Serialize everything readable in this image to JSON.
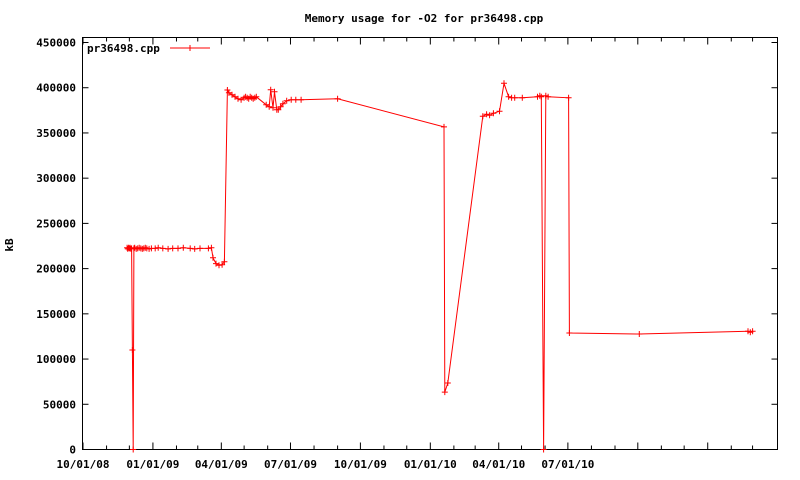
{
  "title": "Memory usage for -O2 for pr36498.cpp",
  "colors": {
    "series": "#ff0000",
    "axis": "#000000",
    "background": "#ffffff"
  },
  "legend": {
    "label": "pr36498.cpp",
    "position": "top-left"
  },
  "chart_data": {
    "type": "line",
    "title": "Memory usage for -O2 for pr36498.cpp",
    "xlabel": "",
    "ylabel": "kB",
    "x_is_time": true,
    "xlim": [
      "2008-10-01",
      "2011-04-03"
    ],
    "ylim": [
      0,
      450000
    ],
    "y_ticks": [
      0,
      50000,
      100000,
      150000,
      200000,
      250000,
      300000,
      350000,
      400000,
      450000
    ],
    "x_minor_ticks": "monthly",
    "x_major_ticks": "quarterly",
    "x_tick_labels": [
      {
        "text": "10/01/08",
        "date": "2008-10-01"
      },
      {
        "text": "01/01/09",
        "date": "2009-01-01"
      },
      {
        "text": "04/01/09",
        "date": "2009-04-01"
      },
      {
        "text": "07/01/09",
        "date": "2009-07-01"
      },
      {
        "text": "10/01/09",
        "date": "2009-10-01"
      },
      {
        "text": "01/01/10",
        "date": "2010-01-01"
      },
      {
        "text": "04/01/10",
        "date": "2010-04-01"
      },
      {
        "text": "07/01/10",
        "date": "2010-07-01"
      }
    ],
    "grid": false,
    "legend_position": "top-left",
    "series": [
      {
        "name": "pr36498.cpp",
        "color": "#ff0000",
        "marker": "plus",
        "points": [
          [
            "2008-11-28",
            223000
          ],
          [
            "2008-11-29",
            221800
          ],
          [
            "2008-11-30",
            223000
          ],
          [
            "2008-12-01",
            222400
          ],
          [
            "2008-12-02",
            223000
          ],
          [
            "2008-12-03",
            221800
          ],
          [
            "2008-12-04",
            222400
          ],
          [
            "2008-12-05",
            110000
          ],
          [
            "2008-12-06",
            0
          ],
          [
            "2008-12-07",
            222400
          ],
          [
            "2008-12-08",
            223000
          ],
          [
            "2008-12-10",
            221800
          ],
          [
            "2008-12-12",
            222400
          ],
          [
            "2008-12-14",
            223000
          ],
          [
            "2008-12-16",
            222400
          ],
          [
            "2008-12-18",
            221800
          ],
          [
            "2008-12-20",
            222400
          ],
          [
            "2008-12-22",
            223000
          ],
          [
            "2008-12-24",
            222400
          ],
          [
            "2008-12-27",
            221800
          ],
          [
            "2008-12-30",
            222400
          ],
          [
            "2009-01-04",
            222400
          ],
          [
            "2009-01-08",
            223000
          ],
          [
            "2009-01-14",
            222400
          ],
          [
            "2009-01-21",
            221800
          ],
          [
            "2009-01-27",
            222400
          ],
          [
            "2009-02-03",
            222400
          ],
          [
            "2009-02-10",
            223000
          ],
          [
            "2009-02-19",
            222400
          ],
          [
            "2009-02-25",
            221800
          ],
          [
            "2009-03-04",
            222400
          ],
          [
            "2009-03-15",
            222400
          ],
          [
            "2009-03-19",
            223000
          ],
          [
            "2009-03-21",
            212000
          ],
          [
            "2009-03-25",
            205500
          ],
          [
            "2009-03-29",
            203800
          ],
          [
            "2009-04-02",
            204300
          ],
          [
            "2009-04-05",
            207500
          ],
          [
            "2009-04-09",
            397500
          ],
          [
            "2009-04-11",
            394400
          ],
          [
            "2009-04-15",
            392200
          ],
          [
            "2009-04-19",
            390000
          ],
          [
            "2009-04-23",
            387800
          ],
          [
            "2009-04-27",
            386700
          ],
          [
            "2009-05-01",
            388900
          ],
          [
            "2009-05-03",
            390000
          ],
          [
            "2009-05-05",
            388900
          ],
          [
            "2009-05-07",
            387800
          ],
          [
            "2009-05-09",
            390000
          ],
          [
            "2009-05-11",
            388900
          ],
          [
            "2009-05-13",
            387800
          ],
          [
            "2009-05-15",
            388900
          ],
          [
            "2009-05-17",
            390000
          ],
          [
            "2009-05-30",
            381100
          ],
          [
            "2009-06-03",
            378900
          ],
          [
            "2009-06-05",
            397700
          ],
          [
            "2009-06-08",
            377800
          ],
          [
            "2009-06-10",
            395500
          ],
          [
            "2009-06-13",
            375600
          ],
          [
            "2009-06-15",
            375600
          ],
          [
            "2009-06-18",
            378900
          ],
          [
            "2009-06-21",
            382200
          ],
          [
            "2009-06-26",
            385500
          ],
          [
            "2009-07-02",
            386600
          ],
          [
            "2009-07-08",
            386600
          ],
          [
            "2009-07-15",
            386600
          ],
          [
            "2009-09-01",
            387700
          ],
          [
            "2010-01-19",
            356700
          ],
          [
            "2010-01-20",
            63500
          ],
          [
            "2010-01-24",
            73500
          ],
          [
            "2010-03-11",
            368400
          ],
          [
            "2010-03-16",
            370600
          ],
          [
            "2010-03-20",
            369500
          ],
          [
            "2010-03-25",
            371700
          ],
          [
            "2010-04-02",
            373900
          ],
          [
            "2010-04-08",
            404900
          ],
          [
            "2010-04-14",
            390000
          ],
          [
            "2010-04-18",
            388900
          ],
          [
            "2010-04-22",
            388900
          ],
          [
            "2010-05-02",
            388900
          ],
          [
            "2010-05-22",
            390000
          ],
          [
            "2010-05-25",
            391100
          ],
          [
            "2010-05-27",
            390000
          ],
          [
            "2010-05-30",
            0
          ],
          [
            "2010-06-02",
            391100
          ],
          [
            "2010-06-05",
            390000
          ],
          [
            "2010-07-02",
            388900
          ],
          [
            "2010-07-03",
            128800
          ],
          [
            "2010-10-03",
            127700
          ],
          [
            "2011-02-23",
            130800
          ],
          [
            "2011-02-26",
            129700
          ],
          [
            "2011-03-01",
            130800
          ]
        ]
      }
    ]
  }
}
